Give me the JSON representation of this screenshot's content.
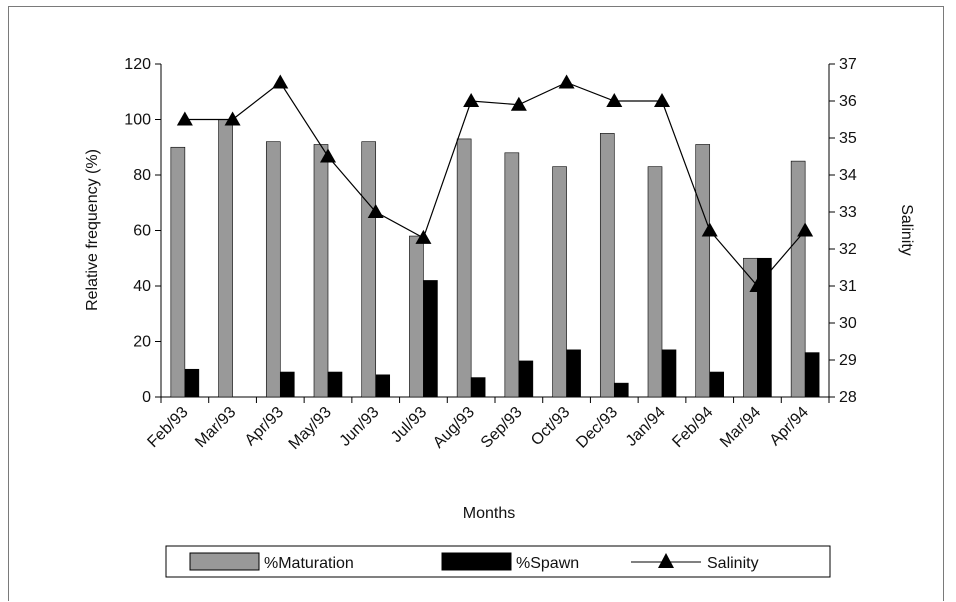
{
  "chart_data": {
    "type": "bar",
    "categories": [
      "Feb/93",
      "Mar/93",
      "Apr/93",
      "May/93",
      "Jun/93",
      "Jul/93",
      "Aug/93",
      "Sep/93",
      "Oct/93",
      "Dec/93",
      "Jan/94",
      "Feb/94",
      "Mar/94",
      "Apr/94"
    ],
    "series": [
      {
        "name": "%Maturation",
        "type": "bar",
        "axis": "left",
        "color": "#999999",
        "values": [
          90,
          100,
          92,
          91,
          92,
          58,
          93,
          88,
          83,
          95,
          83,
          91,
          50,
          85
        ]
      },
      {
        "name": "%Spawn",
        "type": "bar",
        "axis": "left",
        "color": "#000000",
        "values": [
          10,
          0,
          9,
          9,
          8,
          42,
          7,
          13,
          17,
          5,
          17,
          9,
          50,
          16
        ]
      },
      {
        "name": "Salinity",
        "type": "line",
        "axis": "right",
        "color": "#000000",
        "marker": "triangle",
        "values": [
          35.5,
          35.5,
          36.5,
          34.5,
          33.0,
          32.3,
          36.0,
          35.9,
          36.5,
          36.0,
          36.0,
          32.5,
          31.0,
          32.5
        ]
      }
    ],
    "xlabel": "Months",
    "ylabel": "Relative frequency (%)",
    "y2label": "Salinity",
    "ylim": [
      0,
      120
    ],
    "y2lim": [
      28,
      37
    ],
    "yticks": [
      "0",
      "20",
      "40",
      "60",
      "80",
      "100",
      "120"
    ],
    "y2ticks": [
      "28",
      "29",
      "30",
      "31",
      "32",
      "33",
      "34",
      "35",
      "36",
      "37"
    ],
    "grid": false,
    "legend_position": "bottom"
  }
}
